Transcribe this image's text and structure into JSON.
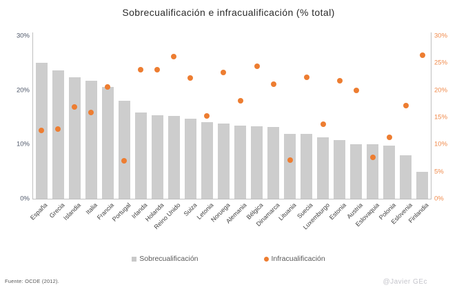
{
  "title": "Sobrecualificación e infracualificación (% total)",
  "legend": {
    "items": [
      {
        "label": "Sobrecualificación",
        "marker": "square",
        "color": "#CDCDCD"
      },
      {
        "label": "Infracualificación",
        "marker": "circle",
        "color": "#ED7D31"
      }
    ]
  },
  "footer": {
    "source": "Fuente: OCDE (2012).",
    "credit": "@Javier GEc"
  },
  "colors": {
    "bar": "#CDCDCD",
    "dot": "#ED7D31",
    "left_axis_text": "#4D5668",
    "right_axis_text": "#F08A4B",
    "axis_line": "#BFBFBF"
  },
  "chart_data": {
    "type": "bar",
    "title": "Sobrecualificación e infracualificación (% total)",
    "categories": [
      "España",
      "Grecia",
      "Islandia",
      "Italia",
      "Francia",
      "Portugal",
      "Irlanda",
      "Holanda",
      "Reino Unido",
      "Suiza",
      "Letonia",
      "Noruega",
      "Alemania",
      "Bélgica",
      "Dinamarca",
      "Lituania",
      "Suecia",
      "Luxemburgo",
      "Estonia",
      "Austria",
      "Eslovaquia",
      "Polonia",
      "Eslovenia",
      "Finlandia"
    ],
    "series": [
      {
        "name": "Sobrecualificación",
        "type": "bar",
        "color": "#CDCDCD",
        "values": [
          25.0,
          23.7,
          22.4,
          21.8,
          20.6,
          18.0,
          15.9,
          15.4,
          15.3,
          14.8,
          14.1,
          13.9,
          13.5,
          13.4,
          13.2,
          12.0,
          11.9,
          11.3,
          10.8,
          10.0,
          10.0,
          9.8,
          8.0,
          4.9
        ]
      },
      {
        "name": "Infracualificación",
        "type": "scatter",
        "color": "#ED7D31",
        "values": [
          12.6,
          12.8,
          16.9,
          15.9,
          20.6,
          7.0,
          23.8,
          23.8,
          26.2,
          22.3,
          15.2,
          23.2,
          18.0,
          24.4,
          21.1,
          7.1,
          22.4,
          13.7,
          21.7,
          20.0,
          7.6,
          11.3,
          17.1,
          26.4
        ]
      }
    ],
    "left_axis": {
      "ticks": [
        "0%",
        "10%",
        "20%",
        "30%"
      ],
      "range": [
        0,
        30
      ]
    },
    "right_axis": {
      "ticks": [
        "0%",
        "5%",
        "10%",
        "15%",
        "20%",
        "25%",
        "30%"
      ],
      "range": [
        0,
        30
      ]
    },
    "grid": false,
    "legend_position": "bottom",
    "xlabel": "",
    "ylabel": ""
  }
}
